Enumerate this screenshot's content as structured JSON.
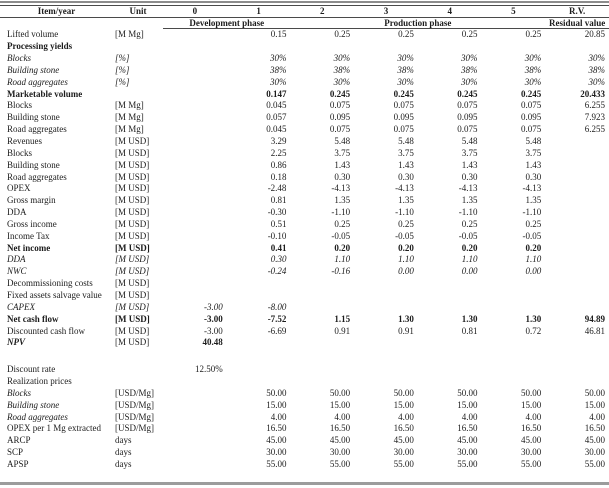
{
  "colors": {
    "text": "#1c1c1c",
    "thin_rule": "#4a4a4a",
    "thick_rule": "#9c9c9c"
  },
  "table": {
    "header": {
      "item_col": "Item/year",
      "unit_col": "Unit",
      "year_cols": [
        "0",
        "1",
        "2",
        "3",
        "4",
        "5",
        "R.V."
      ]
    },
    "phase_row": {
      "development": "Development phase",
      "production": "Production phase",
      "residual": "Residual value"
    },
    "rows": [
      {
        "item": "Lifted volume",
        "unit": "[M Mg]",
        "style": "normal",
        "values": [
          "",
          "0.15",
          "0.25",
          "0.25",
          "0.25",
          "0.25",
          "20.85"
        ]
      },
      {
        "item": "Processing yields",
        "unit": "",
        "style": "bold",
        "values": [
          "",
          "",
          "",
          "",
          "",
          "",
          ""
        ]
      },
      {
        "item": "Blocks",
        "unit": "[%]",
        "style": "italic",
        "values": [
          "",
          "30%",
          "30%",
          "30%",
          "30%",
          "30%",
          "30%"
        ]
      },
      {
        "item": "Building stone",
        "unit": "[%]",
        "style": "italic",
        "values": [
          "",
          "38%",
          "38%",
          "38%",
          "38%",
          "38%",
          "38%"
        ]
      },
      {
        "item": "Road aggregates",
        "unit": "[%]",
        "style": "italic",
        "values": [
          "",
          "30%",
          "30%",
          "30%",
          "30%",
          "30%",
          "30%"
        ]
      },
      {
        "item": "Marketable volume",
        "unit": "",
        "style": "bold",
        "values": [
          "",
          "0.147",
          "0.245",
          "0.245",
          "0.245",
          "0.245",
          "20.433"
        ]
      },
      {
        "item": "Blocks",
        "unit": "[M Mg]",
        "style": "normal",
        "values": [
          "",
          "0.045",
          "0.075",
          "0.075",
          "0.075",
          "0.075",
          "6.255"
        ]
      },
      {
        "item": "Building stone",
        "unit": "[M Mg]",
        "style": "normal",
        "values": [
          "",
          "0.057",
          "0.095",
          "0.095",
          "0.095",
          "0.095",
          "7.923"
        ]
      },
      {
        "item": "Road aggregates",
        "unit": "[M Mg]",
        "style": "normal",
        "values": [
          "",
          "0.045",
          "0.075",
          "0.075",
          "0.075",
          "0.075",
          "6.255"
        ]
      },
      {
        "item": "Revenues",
        "unit": "[M USD]",
        "style": "normal",
        "values": [
          "",
          "3.29",
          "5.48",
          "5.48",
          "5.48",
          "5.48",
          ""
        ]
      },
      {
        "item": "Blocks",
        "unit": "[M USD]",
        "style": "normal",
        "values": [
          "",
          "2.25",
          "3.75",
          "3.75",
          "3.75",
          "3.75",
          ""
        ]
      },
      {
        "item": "Building stone",
        "unit": "[M USD]",
        "style": "normal",
        "values": [
          "",
          "0.86",
          "1.43",
          "1.43",
          "1.43",
          "1.43",
          ""
        ]
      },
      {
        "item": "Road aggregates",
        "unit": "[M USD]",
        "style": "normal",
        "values": [
          "",
          "0.18",
          "0.30",
          "0.30",
          "0.30",
          "0.30",
          ""
        ]
      },
      {
        "item": "OPEX",
        "unit": "[M USD]",
        "style": "normal",
        "values": [
          "",
          "-2.48",
          "-4.13",
          "-4.13",
          "-4.13",
          "-4.13",
          ""
        ]
      },
      {
        "item": "Gross margin",
        "unit": "[M USD]",
        "style": "normal",
        "values": [
          "",
          "0.81",
          "1.35",
          "1.35",
          "1.35",
          "1.35",
          ""
        ]
      },
      {
        "item": "DDA",
        "unit": "[M USD]",
        "style": "normal",
        "values": [
          "",
          "-0.30",
          "-1.10",
          "-1.10",
          "-1.10",
          "-1.10",
          ""
        ]
      },
      {
        "item": "Gross income",
        "unit": "[M USD]",
        "style": "normal",
        "values": [
          "",
          "0.51",
          "0.25",
          "0.25",
          "0.25",
          "0.25",
          ""
        ]
      },
      {
        "item": "Income Tax",
        "unit": "[M USD]",
        "style": "normal",
        "values": [
          "",
          "-0.10",
          "-0.05",
          "-0.05",
          "-0.05",
          "-0.05",
          ""
        ]
      },
      {
        "item": "Net income",
        "unit": "[M USD]",
        "style": "bold",
        "values": [
          "",
          "0.41",
          "0.20",
          "0.20",
          "0.20",
          "0.20",
          ""
        ]
      },
      {
        "item": "DDA",
        "unit": "[M USD]",
        "style": "italic",
        "values": [
          "",
          "0.30",
          "1.10",
          "1.10",
          "1.10",
          "1.10",
          ""
        ]
      },
      {
        "item": "NWC",
        "unit": "[M USD]",
        "style": "italic",
        "values": [
          "",
          "-0.24",
          "-0.16",
          "0.00",
          "0.00",
          "0.00",
          ""
        ]
      },
      {
        "item": "Decommissioning costs",
        "unit": "[M USD]",
        "style": "normal",
        "values": [
          "",
          "",
          "",
          "",
          "",
          "",
          ""
        ]
      },
      {
        "item": "Fixed assets salvage value",
        "unit": "[M USD]",
        "style": "normal",
        "values": [
          "",
          "",
          "",
          "",
          "",
          "",
          ""
        ]
      },
      {
        "item": "CAPEX",
        "unit": "[M USD]",
        "style": "italic",
        "values": [
          "-3.00",
          "-8.00",
          "",
          "",
          "",
          "",
          ""
        ]
      },
      {
        "item": "Net cash flow",
        "unit": "[M USD]",
        "style": "bold",
        "values": [
          "-3.00",
          "-7.52",
          "1.15",
          "1.30",
          "1.30",
          "1.30",
          "94.89"
        ]
      },
      {
        "item": "Discounted cash flow",
        "unit": "[M USD]",
        "style": "normal",
        "values": [
          "-3.00",
          "-6.69",
          "0.91",
          "0.91",
          "0.81",
          "0.72",
          "46.81"
        ]
      },
      {
        "item": "NPV",
        "unit": "[M USD]",
        "style": "npv",
        "values": [
          "40.48",
          "",
          "",
          "",
          "",
          "",
          ""
        ]
      },
      {
        "item": "",
        "unit": "",
        "style": "spacer",
        "values": [
          "",
          "",
          "",
          "",
          "",
          "",
          ""
        ]
      },
      {
        "item": "Discount rate",
        "unit": "",
        "style": "normal",
        "values": [
          "12.50%",
          "",
          "",
          "",
          "",
          "",
          ""
        ]
      },
      {
        "item": "Realization prices",
        "unit": "",
        "style": "normal",
        "values": [
          "",
          "",
          "",
          "",
          "",
          "",
          ""
        ]
      },
      {
        "item": "Blocks",
        "unit": "[USD/Mg]",
        "style": "italic-label",
        "values": [
          "",
          "50.00",
          "50.00",
          "50.00",
          "50.00",
          "50.00",
          "50.00"
        ]
      },
      {
        "item": "Building stone",
        "unit": "[USD/Mg]",
        "style": "italic-label",
        "values": [
          "",
          "15.00",
          "15.00",
          "15.00",
          "15.00",
          "15.00",
          "15.00"
        ]
      },
      {
        "item": "Road aggregates",
        "unit": "[USD/Mg]",
        "style": "italic-label",
        "values": [
          "",
          "4.00",
          "4.00",
          "4.00",
          "4.00",
          "4.00",
          "4.00"
        ]
      },
      {
        "item": "OPEX per 1 Mg extracted",
        "unit": "[USD/Mg]",
        "style": "normal",
        "values": [
          "",
          "16.50",
          "16.50",
          "16.50",
          "16.50",
          "16.50",
          "16.50"
        ]
      },
      {
        "item": "ARCP",
        "unit": "days",
        "style": "normal",
        "values": [
          "",
          "45.00",
          "45.00",
          "45.00",
          "45.00",
          "45.00",
          "45.00"
        ]
      },
      {
        "item": "SCP",
        "unit": "days",
        "style": "normal",
        "values": [
          "",
          "30.00",
          "30.00",
          "30.00",
          "30.00",
          "30.00",
          "30.00"
        ]
      },
      {
        "item": "APSP",
        "unit": "days",
        "style": "normal",
        "values": [
          "",
          "55.00",
          "55.00",
          "55.00",
          "55.00",
          "55.00",
          "55.00"
        ]
      }
    ]
  }
}
